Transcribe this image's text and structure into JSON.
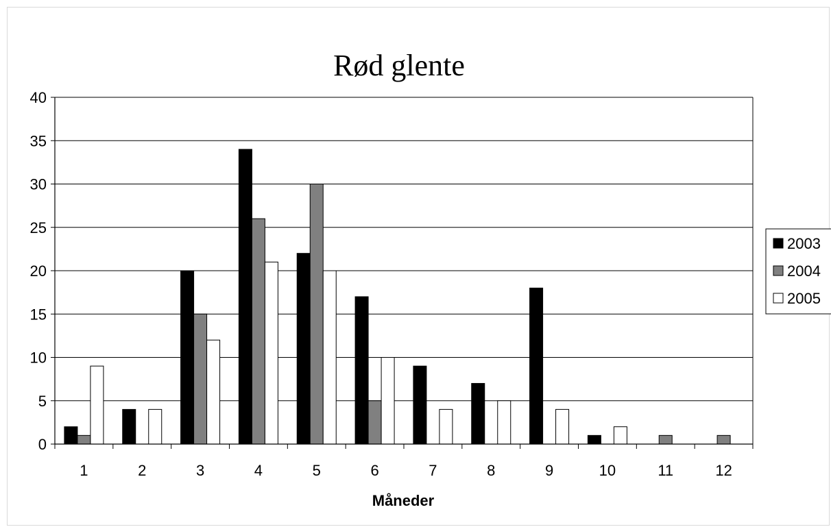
{
  "chart_data": {
    "type": "bar",
    "title": "Rød glente",
    "xlabel": "Måneder",
    "ylabel": "",
    "categories": [
      "1",
      "2",
      "3",
      "4",
      "5",
      "6",
      "7",
      "8",
      "9",
      "10",
      "11",
      "12"
    ],
    "ylim": [
      0,
      40
    ],
    "yticks": [
      0,
      5,
      10,
      15,
      20,
      25,
      30,
      35,
      40
    ],
    "grid": true,
    "legend_position": "right",
    "series": [
      {
        "name": "2003",
        "color": "#000000",
        "values": [
          2,
          4,
          20,
          34,
          22,
          17,
          9,
          7,
          18,
          1,
          0,
          0
        ]
      },
      {
        "name": "2004",
        "color": "#808080",
        "values": [
          1,
          0,
          15,
          26,
          30,
          5,
          0,
          0,
          0,
          0,
          1,
          1
        ]
      },
      {
        "name": "2005",
        "color": "#ffffff",
        "values": [
          9,
          4,
          12,
          21,
          20,
          10,
          4,
          5,
          4,
          2,
          0,
          0
        ]
      }
    ]
  }
}
